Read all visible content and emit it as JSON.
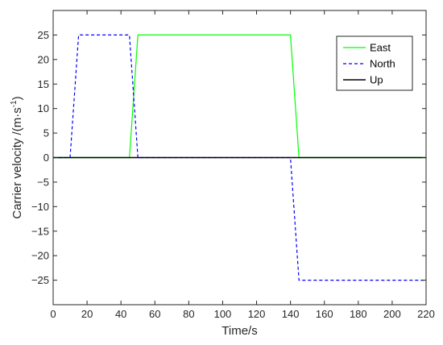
{
  "chart_data": {
    "type": "line",
    "title": "",
    "xlabel": "Time/s",
    "ylabel": "Carrier velocity /(m·s",
    "ylabel_sup": "-1",
    "ylabel_close": ")",
    "xlim": [
      0,
      220
    ],
    "ylim": [
      -30,
      30
    ],
    "xticks": [
      0,
      20,
      40,
      60,
      80,
      100,
      120,
      140,
      160,
      180,
      200,
      220
    ],
    "yticks": [
      -25,
      -20,
      -15,
      -10,
      -5,
      0,
      5,
      10,
      15,
      20,
      25
    ],
    "grid": false,
    "legend_position": "top-right",
    "series": [
      {
        "name": "East",
        "color": "#00ff00",
        "dash": "solid",
        "x": [
          0,
          45,
          50,
          140,
          145,
          220
        ],
        "y": [
          0,
          0,
          25,
          25,
          0,
          0
        ]
      },
      {
        "name": "North",
        "color": "#0000ff",
        "dash": "dashed",
        "x": [
          0,
          10,
          15,
          45,
          50,
          140,
          145,
          220
        ],
        "y": [
          0,
          0,
          25,
          25,
          0,
          0,
          -25,
          -25
        ]
      },
      {
        "name": "Up",
        "color": "#000000",
        "dash": "solid",
        "x": [
          0,
          220
        ],
        "y": [
          0,
          0
        ]
      }
    ]
  }
}
